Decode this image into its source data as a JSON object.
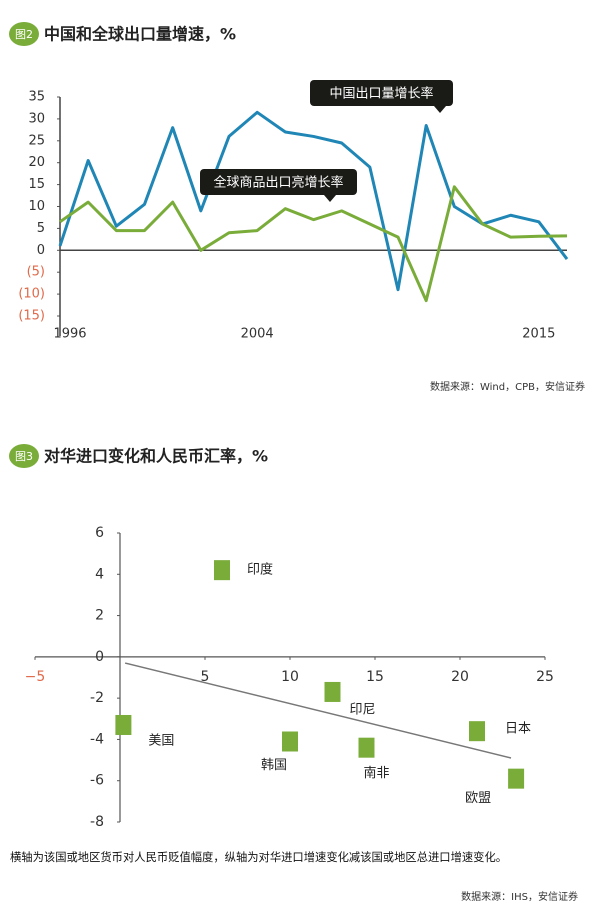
{
  "chart_data": [
    {
      "type": "line",
      "badge": "图2",
      "title": "中国和全球出口量增速，%",
      "categories": [
        "1996",
        null,
        null,
        null,
        null,
        null,
        null,
        "2004",
        null,
        null,
        null,
        null,
        null,
        null,
        null,
        null,
        null,
        "2015",
        null
      ],
      "series": [
        {
          "name": "中国出口量增长率",
          "color": "#1f86b5",
          "values": [
            1,
            20.5,
            5.5,
            10.5,
            28,
            9,
            26,
            31.5,
            27,
            26,
            24.5,
            19,
            -9,
            28.5,
            10,
            6,
            8,
            6.5,
            -2
          ]
        },
        {
          "name": "全球商品出口亮增长率",
          "color": "#7aac3a",
          "values": [
            6.5,
            11,
            4.5,
            4.5,
            11,
            0,
            4,
            4.5,
            9.5,
            7,
            9,
            6,
            3,
            -11.5,
            14.5,
            6,
            3,
            3.2,
            3.3
          ]
        }
      ],
      "ylim": [
        -15,
        35
      ],
      "yticks": [
        35,
        30,
        25,
        20,
        15,
        10,
        5,
        0,
        {
          "value": -5,
          "label": "(5)"
        },
        {
          "value": -10,
          "label": "(10)"
        },
        {
          "value": -15,
          "label": "(15)"
        }
      ],
      "source": "数据来源：Wind，CPB，安信证券"
    },
    {
      "type": "scatter",
      "badge": "图3",
      "title": "对华进口变化和人民币汇率，%",
      "labels": [
        "印度",
        "印尼",
        "美国",
        "韩国",
        "南非",
        "日本",
        "欧盟"
      ],
      "x": [
        6,
        12.5,
        0.2,
        10,
        14.5,
        21,
        23.3
      ],
      "y": [
        4.2,
        -1.7,
        -3.3,
        -4.1,
        -4.4,
        -3.6,
        -5.9
      ],
      "color": "#7aac3a",
      "trendline": {
        "x": [
          0.3,
          23
        ],
        "y": [
          -0.3,
          -4.9
        ]
      },
      "xlim": [
        -5,
        25
      ],
      "xticks": [
        {
          "value": -5,
          "label": "−5"
        },
        5,
        10,
        15,
        20,
        25
      ],
      "ylim": [
        -8,
        6
      ],
      "yticks": [
        6,
        4,
        2,
        0,
        -2,
        -4,
        -6,
        -8
      ],
      "note": "横轴为该国或地区货币对人民币贬值幅度，纵轴为对华进口增速变化减该国或地区总进口增速变化。",
      "source": "数据来源：IHS，安信证券"
    }
  ]
}
